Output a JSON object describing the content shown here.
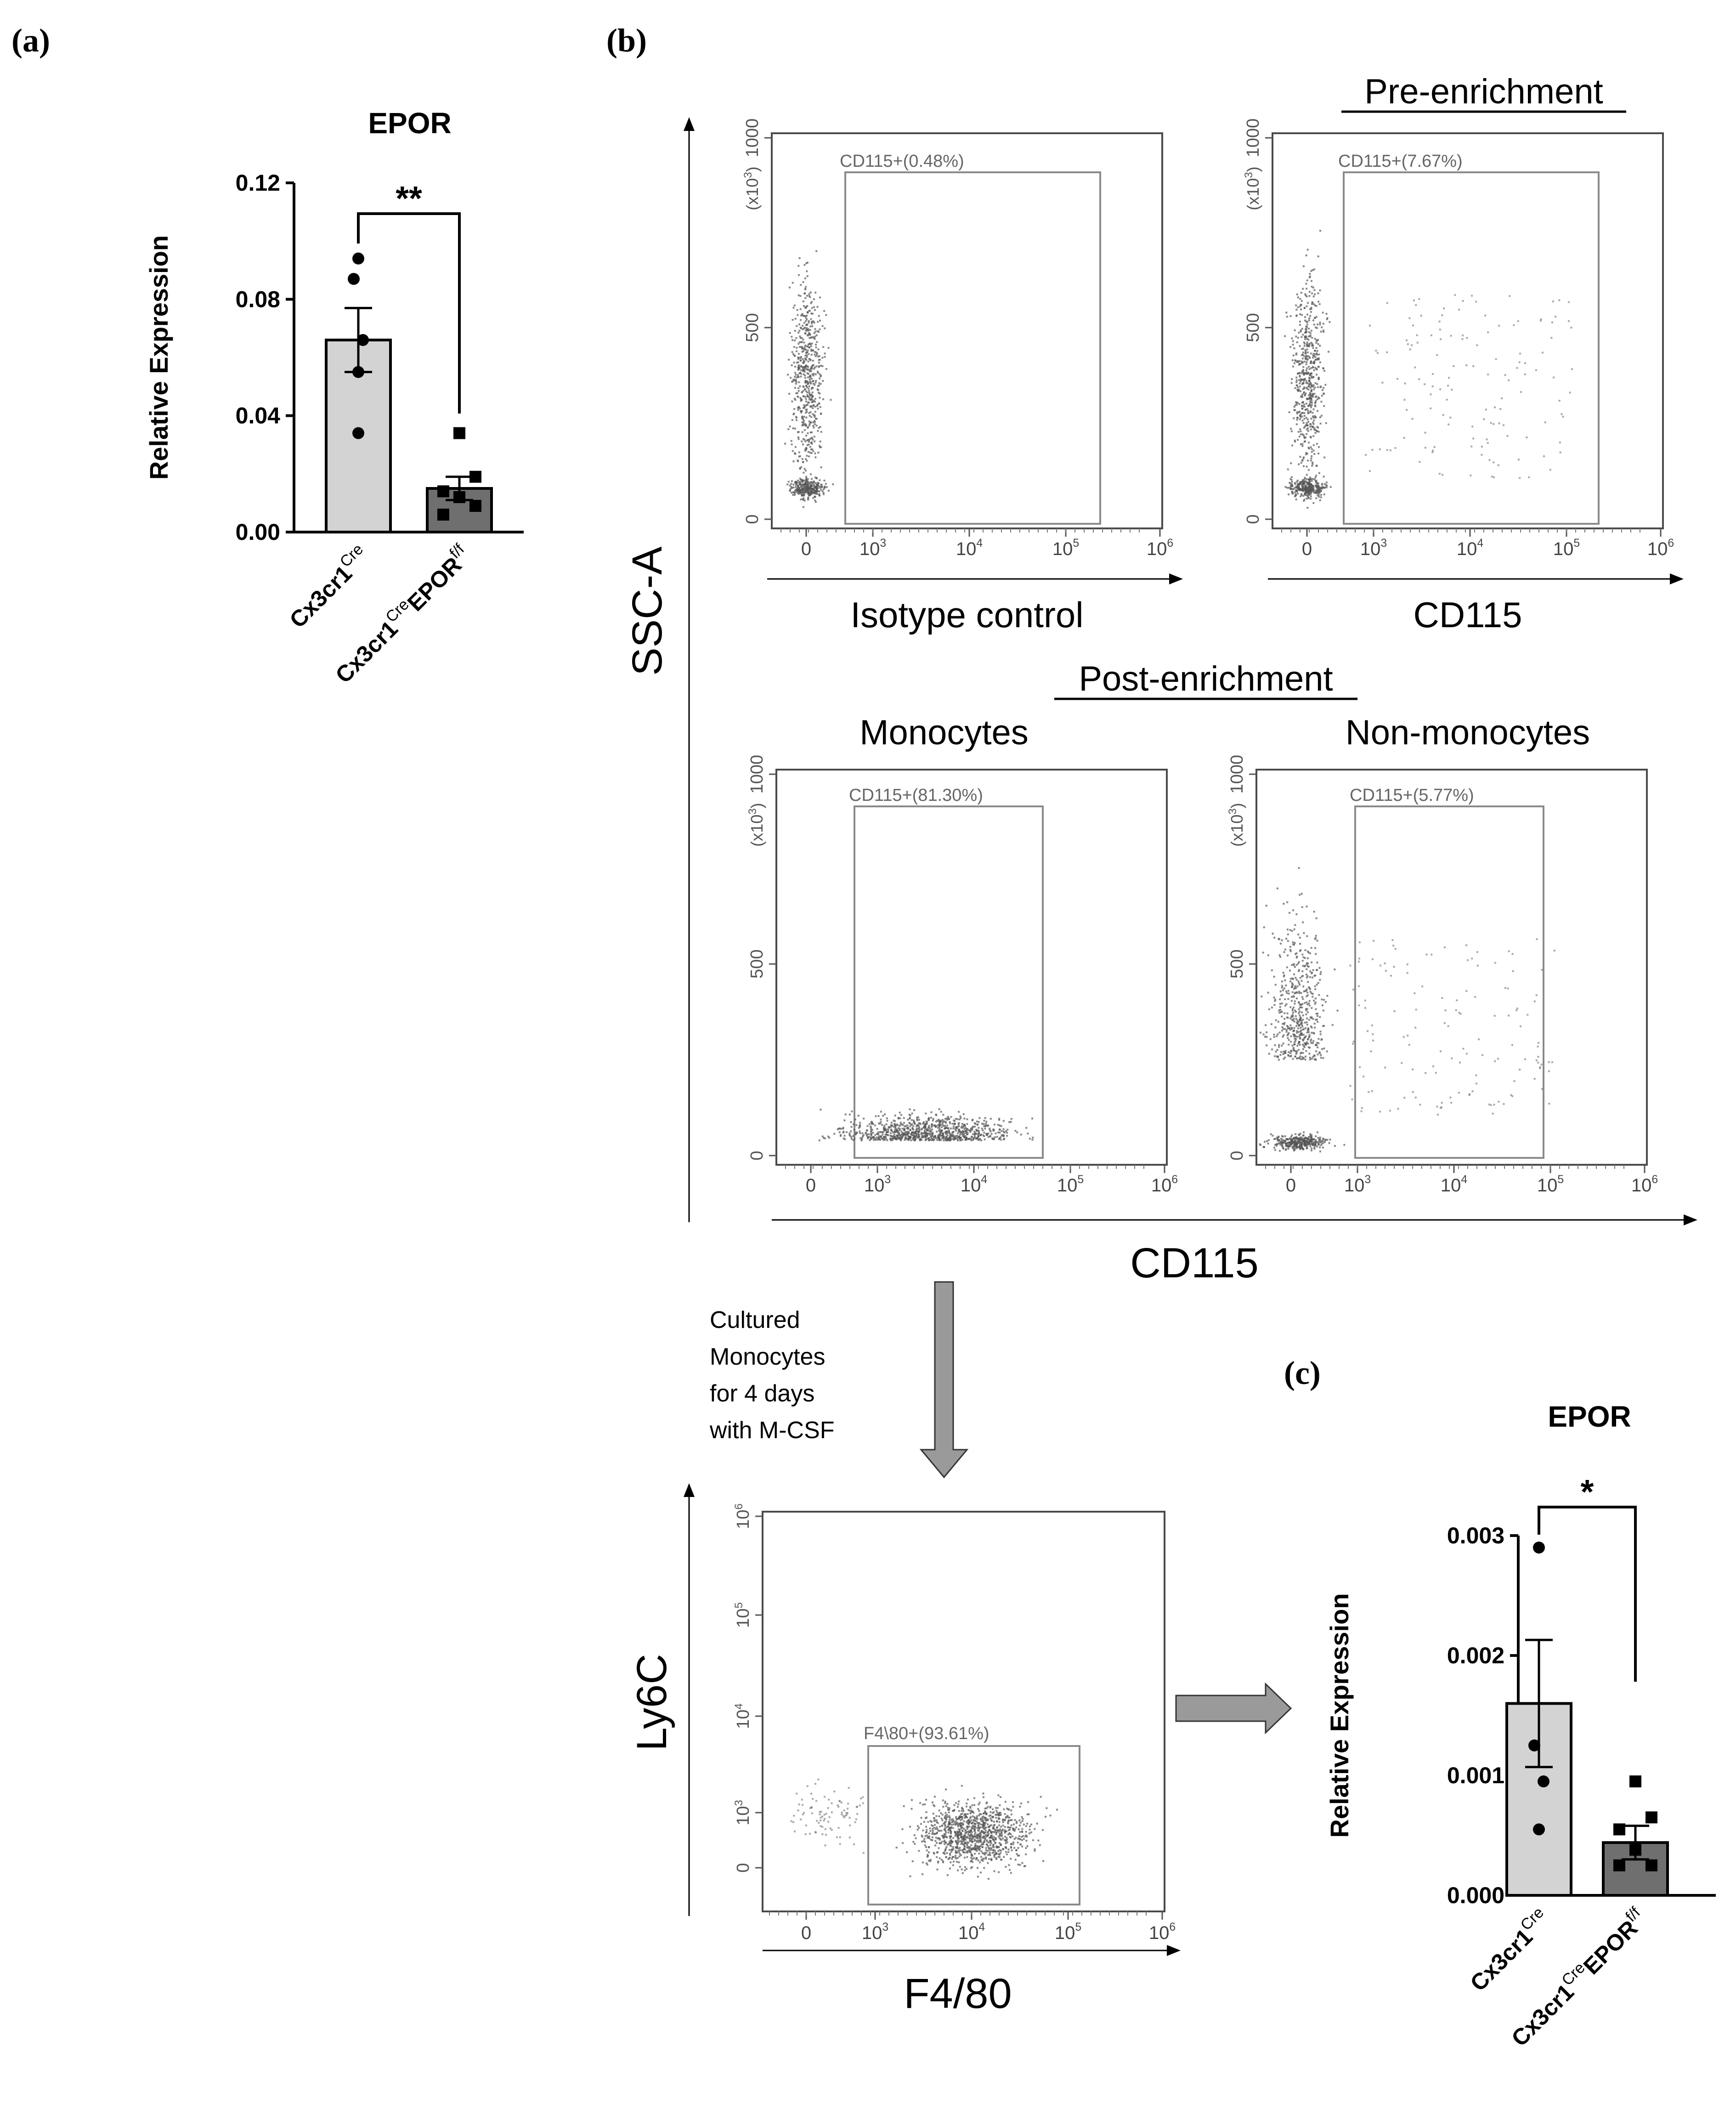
{
  "panel_labels": {
    "a": "(a)",
    "b": "(b)",
    "c": "(c)"
  },
  "colors": {
    "ink": "#000000",
    "bar_cre": "#d3d3d3",
    "bar_epor": "#6f6f6f",
    "flow_frame": "#4a4a4a",
    "gate": "#8a8a8a",
    "dots": "#555555",
    "arrow": "#9a9a9a"
  },
  "chart_data": [
    {
      "id": "a",
      "type": "bar",
      "title": "EPOR",
      "ylabel": "Relative Expression",
      "ylim": [
        0,
        0.12
      ],
      "yticks": [
        0.0,
        0.04,
        0.08,
        0.12
      ],
      "ytick_labels": [
        "0.00",
        "0.04",
        "0.08",
        "0.12"
      ],
      "categories": [
        "Cx3cr1 Cre",
        "Cx3cr1 Cre EPOR f/f"
      ],
      "category_parts": [
        {
          "base": "Cx3cr1",
          "sup": "Cre",
          "base2": "",
          "sup2": ""
        },
        {
          "base": "Cx3cr1",
          "sup": "Cre",
          "base2": "EPOR",
          "sup2": "f/f"
        }
      ],
      "values": [
        0.066,
        0.015
      ],
      "errors": [
        0.011,
        0.004
      ],
      "points": [
        [
          0.094,
          0.087,
          0.066,
          0.055,
          0.034
        ],
        [
          0.034,
          0.019,
          0.014,
          0.012,
          0.009,
          0.006
        ]
      ],
      "significance": "**"
    },
    {
      "id": "c",
      "type": "bar",
      "title": "EPOR",
      "ylabel": "Relative Expression",
      "ylim": [
        0,
        0.003
      ],
      "yticks": [
        0.0,
        0.001,
        0.002,
        0.003
      ],
      "ytick_labels": [
        "0.000",
        "0.001",
        "0.002",
        "0.003"
      ],
      "categories": [
        "Cx3cr1 Cre",
        "Cx3cr1 Cre EPOR f/f"
      ],
      "category_parts": [
        {
          "base": "Cx3cr1",
          "sup": "Cre",
          "base2": "",
          "sup2": ""
        },
        {
          "base": "Cx3cr1",
          "sup": "Cre",
          "base2": "EPOR",
          "sup2": "f/f"
        }
      ],
      "values": [
        0.0016,
        0.00044
      ],
      "errors": [
        0.00053,
        0.00014
      ],
      "points": [
        [
          0.0029,
          0.00125,
          0.00095,
          0.00055
        ],
        [
          0.00095,
          0.00065,
          0.00055,
          0.00038,
          0.00025,
          0.00025
        ]
      ],
      "significance": "*"
    },
    {
      "id": "b",
      "type": "scatter",
      "section_labels": {
        "pre": "Pre-enrichment",
        "post": "Post-enrichment",
        "monocytes": "Monocytes",
        "non_monocytes": "Non-monocytes"
      },
      "y_axis_label": "SSC-A",
      "x_axis_label_shared": "CD115",
      "x_tick_labels": [
        "0",
        "10",
        "10",
        "10",
        "10"
      ],
      "x_tick_exponents": [
        "",
        "3",
        "4",
        "5",
        "6"
      ],
      "y_tick_labels": [
        "0",
        "500",
        "1000"
      ],
      "y_scale_label": "(x10",
      "y_scale_exponent": "3",
      "y_scale_close": ")",
      "plots": [
        {
          "name": "isotype",
          "xlabel": "Isotype control",
          "gate_label": "CD115+(0.48%)",
          "gate_percent": 0.48
        },
        {
          "name": "cd115-pre",
          "xlabel": "CD115",
          "gate_label": "CD115+(7.67%)",
          "gate_percent": 7.67
        },
        {
          "name": "monocytes",
          "xlabel": "",
          "gate_label": "CD115+(81.30%)",
          "gate_percent": 81.3
        },
        {
          "name": "non-monocytes",
          "xlabel": "",
          "gate_label": "CD115+(5.77%)",
          "gate_percent": 5.77
        }
      ]
    },
    {
      "id": "b2",
      "type": "scatter",
      "xlabel": "F4/80",
      "ylabel": "Ly6C",
      "gate_label": "F4\\80+(93.61%)",
      "gate_percent": 93.61,
      "x_tick_labels": [
        "0",
        "10",
        "10",
        "10",
        "10"
      ],
      "x_tick_exponents": [
        "",
        "3",
        "4",
        "5",
        "6"
      ],
      "y_tick_labels": [
        "0",
        "10",
        "10",
        "10",
        "10"
      ],
      "y_tick_exponents": [
        "",
        "3",
        "4",
        "5",
        "6"
      ]
    }
  ],
  "culture_note": [
    "Cultured",
    "Monocytes",
    "for 4 days",
    "with M-CSF"
  ]
}
